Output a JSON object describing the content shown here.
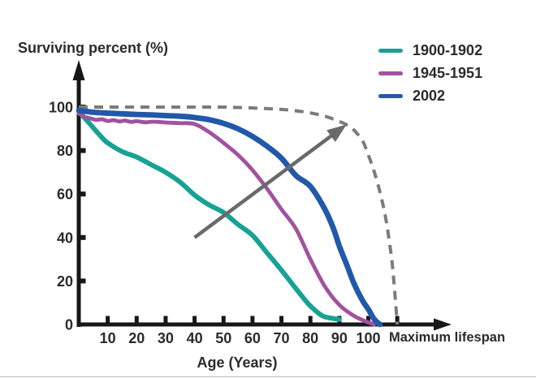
{
  "chart": {
    "y_axis_title": "Surviving percent (%)",
    "x_axis_title": "Age (Years)",
    "max_lifespan_label": "Maximum lifespan"
  },
  "colors": {
    "axis": "#171717",
    "text": "#2b2b2b",
    "series_1900": "#17a295",
    "series_1945": "#a1529f",
    "series_2002": "#2158a9",
    "max_lifespan_dashed": "#7b7b7b",
    "trend_arrow": "#6a6a6a"
  },
  "chart_data": {
    "type": "line",
    "title": "",
    "xlabel": "Age (Years)",
    "ylabel": "Surviving percent (%)",
    "xlim": [
      0,
      113
    ],
    "ylim": [
      0,
      100
    ],
    "grid": false,
    "legend_position": "top-right",
    "x_ticks": [
      10,
      20,
      30,
      40,
      50,
      60,
      70,
      80,
      90,
      100
    ],
    "x_ticks_unlabeled": [
      110
    ],
    "x_axis_end_label": "Maximum lifespan",
    "y_ticks": [
      0,
      20,
      40,
      60,
      80,
      100
    ],
    "series": [
      {
        "name": "1900-1902",
        "color": "#17a295",
        "style": "solid",
        "width": 6,
        "in_legend": true,
        "points": [
          [
            0,
            98
          ],
          [
            3,
            93.5
          ],
          [
            5,
            90.5
          ],
          [
            8,
            86
          ],
          [
            10,
            83.5
          ],
          [
            15,
            79.5
          ],
          [
            20,
            77
          ],
          [
            25,
            73.5
          ],
          [
            30,
            70
          ],
          [
            35,
            65.5
          ],
          [
            40,
            59.5
          ],
          [
            45,
            55
          ],
          [
            50,
            51.5
          ],
          [
            55,
            46
          ],
          [
            60,
            41
          ],
          [
            65,
            33
          ],
          [
            70,
            25
          ],
          [
            75,
            16.5
          ],
          [
            78,
            11.5
          ],
          [
            80,
            8.5
          ],
          [
            83,
            5
          ],
          [
            85,
            3.5
          ],
          [
            90,
            2.3
          ]
        ]
      },
      {
        "name": "1945-1951",
        "color": "#a1529f",
        "style": "solid",
        "width": 4.8,
        "in_legend": true,
        "points": [
          [
            0,
            97
          ],
          [
            2,
            95.5
          ],
          [
            4,
            94.8
          ],
          [
            6,
            94.1
          ],
          [
            8,
            94.4
          ],
          [
            10,
            93.6
          ],
          [
            12,
            94.0
          ],
          [
            14,
            93.4
          ],
          [
            16,
            93.8
          ],
          [
            18,
            93.2
          ],
          [
            20,
            93.5
          ],
          [
            23,
            93.0
          ],
          [
            26,
            93.3
          ],
          [
            30,
            92.9
          ],
          [
            35,
            92.6
          ],
          [
            40,
            92.2
          ],
          [
            45,
            88.5
          ],
          [
            50,
            83.5
          ],
          [
            55,
            78
          ],
          [
            60,
            71
          ],
          [
            65,
            62.5
          ],
          [
            70,
            53
          ],
          [
            75,
            44
          ],
          [
            80,
            30
          ],
          [
            85,
            17.5
          ],
          [
            90,
            9
          ],
          [
            95,
            4
          ],
          [
            99,
            1.5
          ],
          [
            102,
            0
          ]
        ]
      },
      {
        "name": "2002",
        "color": "#2158a9",
        "style": "solid",
        "width": 6.8,
        "in_legend": true,
        "points": [
          [
            0,
            98.5
          ],
          [
            5,
            97.6
          ],
          [
            10,
            97.2
          ],
          [
            15,
            96.9
          ],
          [
            20,
            96.6
          ],
          [
            25,
            96.4
          ],
          [
            30,
            96.1
          ],
          [
            35,
            95.8
          ],
          [
            40,
            95.2
          ],
          [
            45,
            94.2
          ],
          [
            50,
            92.5
          ],
          [
            55,
            90
          ],
          [
            60,
            86.5
          ],
          [
            65,
            82
          ],
          [
            70,
            76.5
          ],
          [
            75,
            68.5
          ],
          [
            80,
            63.5
          ],
          [
            85,
            53
          ],
          [
            88,
            44
          ],
          [
            90,
            36
          ],
          [
            93,
            26
          ],
          [
            95,
            19
          ],
          [
            98,
            11
          ],
          [
            100,
            7
          ],
          [
            102,
            2.5
          ],
          [
            104,
            0
          ]
        ]
      },
      {
        "name": "Maximum lifespan",
        "color": "#7b7b7b",
        "style": "dashed",
        "width": 4,
        "in_legend": false,
        "points": [
          [
            0,
            100
          ],
          [
            10,
            100
          ],
          [
            20,
            100
          ],
          [
            30,
            100
          ],
          [
            40,
            100
          ],
          [
            50,
            100
          ],
          [
            55,
            99.8
          ],
          [
            60,
            99.6
          ],
          [
            65,
            99.3
          ],
          [
            70,
            98.9
          ],
          [
            75,
            98.3
          ],
          [
            80,
            97.3
          ],
          [
            85,
            95.8
          ],
          [
            90,
            93.4
          ],
          [
            93,
            91.5
          ],
          [
            95,
            89.5
          ],
          [
            98,
            84.5
          ],
          [
            100,
            78
          ],
          [
            102,
            70.5
          ],
          [
            104,
            61
          ],
          [
            106,
            49
          ],
          [
            108,
            31
          ],
          [
            109,
            17
          ],
          [
            110,
            0
          ]
        ]
      }
    ],
    "annotations": [
      {
        "type": "arrow",
        "from": [
          40,
          40
        ],
        "to": [
          92.5,
          92
        ],
        "color": "#6a6a6a",
        "width": 4.5
      }
    ]
  }
}
